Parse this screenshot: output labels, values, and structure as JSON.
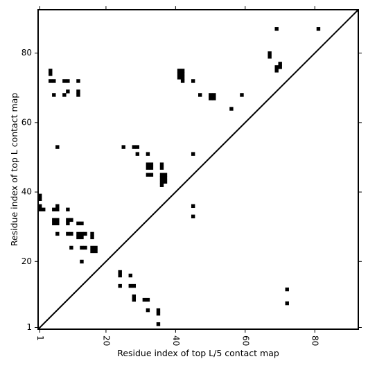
{
  "chart_data": {
    "type": "scatter",
    "xlabel": "Residue index of top L/5 contact map",
    "ylabel": "Residue index of top L contact map",
    "xlim": [
      0.5,
      92.5
    ],
    "ylim": [
      0.5,
      92.5
    ],
    "x_ticks": [
      1,
      20,
      40,
      60,
      80
    ],
    "y_ticks": [
      1,
      20,
      40,
      60,
      80
    ],
    "x_tick_labels": [
      "1",
      "20",
      "40",
      "60",
      "80"
    ],
    "y_tick_labels": [
      "1",
      "20",
      "40",
      "60",
      "80"
    ],
    "diagonal_line": true,
    "grid": false,
    "colors": {
      "marker": "#000000",
      "frame": "#000000"
    },
    "upper_triangle_points": [
      [
        1,
        39
      ],
      [
        1,
        38
      ],
      [
        1,
        36
      ],
      [
        1,
        35
      ],
      [
        2,
        35
      ],
      [
        4,
        75
      ],
      [
        4,
        74
      ],
      [
        4,
        72
      ],
      [
        5,
        72
      ],
      [
        5,
        68
      ],
      [
        5,
        35
      ],
      [
        6,
        35
      ],
      [
        6,
        36
      ],
      [
        5,
        32
      ],
      [
        5,
        31
      ],
      [
        6,
        32
      ],
      [
        6,
        31
      ],
      [
        6,
        53
      ],
      [
        6,
        28
      ],
      [
        8,
        72
      ],
      [
        9,
        72
      ],
      [
        8,
        68
      ],
      [
        9,
        69
      ],
      [
        9,
        35
      ],
      [
        9,
        32
      ],
      [
        10,
        32
      ],
      [
        9,
        31
      ],
      [
        9,
        28
      ],
      [
        10,
        28
      ],
      [
        10,
        24
      ],
      [
        12,
        72
      ],
      [
        12,
        69
      ],
      [
        12,
        68
      ],
      [
        12,
        31
      ],
      [
        13,
        31
      ],
      [
        12,
        28
      ],
      [
        13,
        28
      ],
      [
        14,
        28
      ],
      [
        12,
        27
      ],
      [
        13,
        27
      ],
      [
        13,
        24
      ],
      [
        14,
        24
      ],
      [
        13,
        20
      ],
      [
        16,
        28
      ],
      [
        16,
        27
      ],
      [
        16,
        24
      ],
      [
        17,
        24
      ],
      [
        16,
        23
      ],
      [
        17,
        23
      ],
      [
        25,
        53
      ],
      [
        28,
        53
      ],
      [
        29,
        53
      ],
      [
        29,
        51
      ],
      [
        32,
        51
      ],
      [
        32,
        48
      ],
      [
        33,
        48
      ],
      [
        32,
        47
      ],
      [
        33,
        47
      ],
      [
        32,
        45
      ],
      [
        33,
        45
      ],
      [
        36,
        48
      ],
      [
        36,
        47
      ],
      [
        36,
        45
      ],
      [
        37,
        45
      ],
      [
        36,
        44
      ],
      [
        37,
        44
      ],
      [
        36,
        43
      ],
      [
        37,
        43
      ],
      [
        36,
        42
      ],
      [
        41,
        75
      ],
      [
        42,
        75
      ],
      [
        41,
        74
      ],
      [
        42,
        74
      ],
      [
        41,
        73
      ],
      [
        42,
        73
      ],
      [
        42,
        72
      ],
      [
        45,
        72
      ],
      [
        47,
        68
      ],
      [
        50,
        68
      ],
      [
        51,
        68
      ],
      [
        50,
        67
      ],
      [
        51,
        67
      ],
      [
        45,
        51
      ],
      [
        45,
        36
      ],
      [
        45,
        33
      ],
      [
        56,
        64
      ],
      [
        59,
        68
      ],
      [
        67,
        80
      ],
      [
        67,
        79
      ],
      [
        69,
        87
      ],
      [
        70,
        77
      ],
      [
        69,
        76
      ],
      [
        70,
        76
      ],
      [
        69,
        75
      ],
      [
        81,
        87
      ]
    ],
    "lower_triangle_points": [
      [
        24,
        17
      ],
      [
        24,
        16
      ],
      [
        27,
        16
      ],
      [
        24,
        13
      ],
      [
        27,
        13
      ],
      [
        28,
        13
      ],
      [
        28,
        10
      ],
      [
        28,
        9
      ],
      [
        31,
        9
      ],
      [
        32,
        9
      ],
      [
        32,
        6
      ],
      [
        35,
        6
      ],
      [
        35,
        5
      ],
      [
        35,
        2
      ],
      [
        72,
        12
      ],
      [
        72,
        8
      ]
    ]
  }
}
